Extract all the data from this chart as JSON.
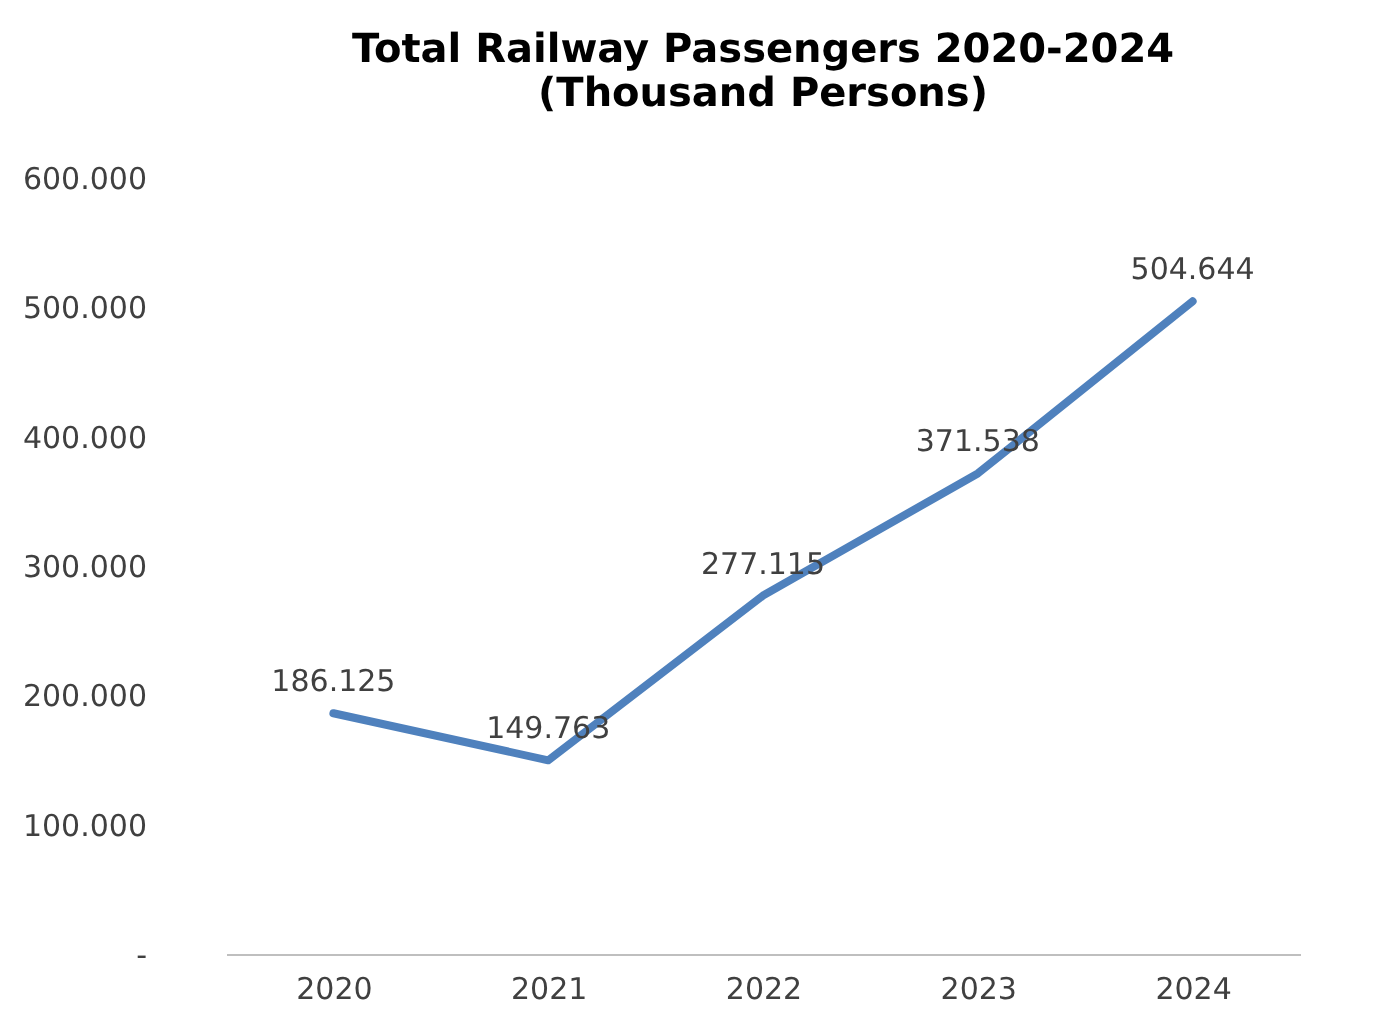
{
  "chart_data": {
    "type": "line",
    "title": "Total Railway Passengers 2020-2024\n(Thousand Persons)",
    "categories": [
      "2020",
      "2021",
      "2022",
      "2023",
      "2024"
    ],
    "series": [
      {
        "color": "#4f81bd",
        "values": [
          186125,
          149763,
          277115,
          371538,
          504644
        ],
        "value_labels": [
          "186.125",
          "149.763",
          "277.115",
          "371.538",
          "504.644"
        ]
      }
    ],
    "ylim": [
      0,
      600000
    ],
    "yticks": [
      {
        "value": 0,
        "label": "-"
      },
      {
        "value": 100000,
        "label": "100.000"
      },
      {
        "value": 200000,
        "label": "200.000"
      },
      {
        "value": 300000,
        "label": "300.000"
      },
      {
        "value": 400000,
        "label": "400.000"
      },
      {
        "value": 500000,
        "label": "500.000"
      },
      {
        "value": 600000,
        "label": "600.000"
      }
    ],
    "grid": false,
    "marker": "none",
    "line_style": "solid"
  }
}
